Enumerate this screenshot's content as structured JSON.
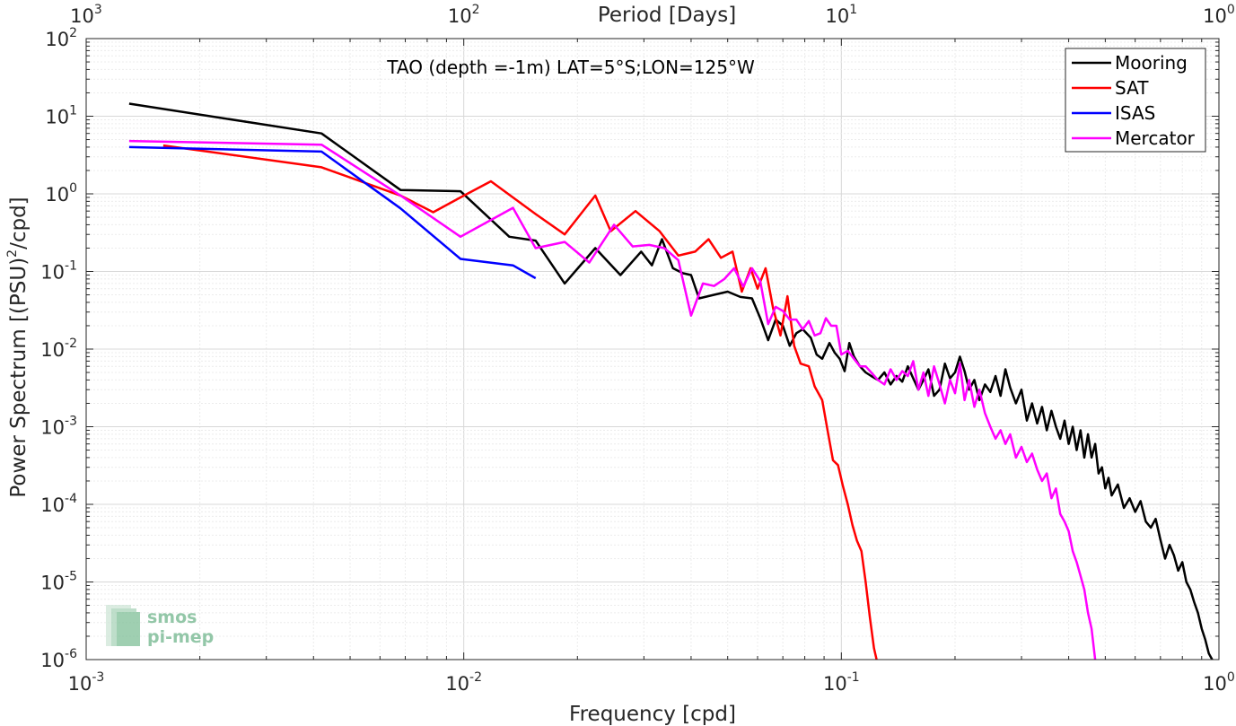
{
  "chart_data": {
    "type": "line",
    "title": "TAO (depth =-1m) LAT=5°S;LON=125°W",
    "xlabel": "Frequency [cpd]",
    "ylabel_main": "Power Spectrum [(PSU)",
    "ylabel_sup": "2",
    "ylabel_end": "/cpd]",
    "top_xlabel": "Period [Days]",
    "xscale": "log",
    "yscale": "log",
    "xlim": [
      0.001,
      1
    ],
    "ylim": [
      1e-06,
      100
    ],
    "grid": true,
    "legend_position": "top-right",
    "x_ticks": [
      {
        "base": "10",
        "exp": "-3",
        "value": 0.001
      },
      {
        "base": "10",
        "exp": "-2",
        "value": 0.01
      },
      {
        "base": "10",
        "exp": "-1",
        "value": 0.1
      },
      {
        "base": "10",
        "exp": "0",
        "value": 1
      }
    ],
    "y_ticks": [
      {
        "base": "10",
        "exp": "-6",
        "value": 1e-06
      },
      {
        "base": "10",
        "exp": "-5",
        "value": 1e-05
      },
      {
        "base": "10",
        "exp": "-4",
        "value": 0.0001
      },
      {
        "base": "10",
        "exp": "-3",
        "value": 0.001
      },
      {
        "base": "10",
        "exp": "-2",
        "value": 0.01
      },
      {
        "base": "10",
        "exp": "-1",
        "value": 0.1
      },
      {
        "base": "10",
        "exp": "0",
        "value": 1
      },
      {
        "base": "10",
        "exp": "1",
        "value": 10
      },
      {
        "base": "10",
        "exp": "2",
        "value": 100
      }
    ],
    "top_ticks": [
      {
        "base": "10",
        "exp": "3",
        "value": 1000
      },
      {
        "base": "10",
        "exp": "2",
        "value": 100
      },
      {
        "base": "10",
        "exp": "1",
        "value": 10
      },
      {
        "base": "10",
        "exp": "0",
        "value": 1
      }
    ],
    "series": [
      {
        "name": "Mooring",
        "color": "#000000",
        "points": [
          [
            0.0013,
            14.5
          ],
          [
            0.0042,
            6.0
          ],
          [
            0.0068,
            1.12
          ],
          [
            0.0098,
            1.08
          ],
          [
            0.0132,
            0.28
          ],
          [
            0.0155,
            0.25
          ],
          [
            0.0185,
            0.07
          ],
          [
            0.0223,
            0.2
          ],
          [
            0.026,
            0.09
          ],
          [
            0.0295,
            0.18
          ],
          [
            0.0315,
            0.12
          ],
          [
            0.0335,
            0.26
          ],
          [
            0.0358,
            0.11
          ],
          [
            0.038,
            0.095
          ],
          [
            0.04,
            0.09
          ],
          [
            0.042,
            0.045
          ],
          [
            0.046,
            0.05
          ],
          [
            0.05,
            0.055
          ],
          [
            0.054,
            0.047
          ],
          [
            0.058,
            0.045
          ],
          [
            0.061,
            0.025
          ],
          [
            0.064,
            0.013
          ],
          [
            0.067,
            0.024
          ],
          [
            0.07,
            0.02
          ],
          [
            0.073,
            0.011
          ],
          [
            0.076,
            0.016
          ],
          [
            0.079,
            0.018
          ],
          [
            0.083,
            0.014
          ],
          [
            0.086,
            0.0085
          ],
          [
            0.089,
            0.0075
          ],
          [
            0.093,
            0.012
          ],
          [
            0.096,
            0.009
          ],
          [
            0.099,
            0.0075
          ],
          [
            0.102,
            0.0052
          ],
          [
            0.105,
            0.012
          ],
          [
            0.108,
            0.008
          ],
          [
            0.112,
            0.006
          ],
          [
            0.116,
            0.005
          ],
          [
            0.12,
            0.0045
          ],
          [
            0.125,
            0.004
          ],
          [
            0.13,
            0.005
          ],
          [
            0.135,
            0.0035
          ],
          [
            0.14,
            0.0045
          ],
          [
            0.145,
            0.0038
          ],
          [
            0.15,
            0.006
          ],
          [
            0.155,
            0.0042
          ],
          [
            0.16,
            0.003
          ],
          [
            0.165,
            0.004
          ],
          [
            0.17,
            0.0055
          ],
          [
            0.176,
            0.0025
          ],
          [
            0.182,
            0.003
          ],
          [
            0.188,
            0.0065
          ],
          [
            0.194,
            0.0042
          ],
          [
            0.2,
            0.005
          ],
          [
            0.206,
            0.008
          ],
          [
            0.212,
            0.0052
          ],
          [
            0.218,
            0.003
          ],
          [
            0.225,
            0.004
          ],
          [
            0.232,
            0.0022
          ],
          [
            0.24,
            0.0035
          ],
          [
            0.248,
            0.0028
          ],
          [
            0.256,
            0.0045
          ],
          [
            0.264,
            0.0025
          ],
          [
            0.272,
            0.0055
          ],
          [
            0.28,
            0.0032
          ],
          [
            0.29,
            0.002
          ],
          [
            0.3,
            0.003
          ],
          [
            0.31,
            0.0012
          ],
          [
            0.32,
            0.002
          ],
          [
            0.33,
            0.0011
          ],
          [
            0.34,
            0.0018
          ],
          [
            0.35,
            0.0009
          ],
          [
            0.36,
            0.0016
          ],
          [
            0.37,
            0.001
          ],
          [
            0.38,
            0.0007
          ],
          [
            0.39,
            0.0012
          ],
          [
            0.4,
            0.0006
          ],
          [
            0.41,
            0.001
          ],
          [
            0.42,
            0.0005
          ],
          [
            0.43,
            0.0009
          ],
          [
            0.44,
            0.0004
          ],
          [
            0.45,
            0.0008
          ],
          [
            0.46,
            0.0004
          ],
          [
            0.47,
            0.0006
          ],
          [
            0.48,
            0.00025
          ],
          [
            0.49,
            0.0003
          ],
          [
            0.5,
            0.00016
          ],
          [
            0.51,
            0.00022
          ],
          [
            0.52,
            0.00013
          ],
          [
            0.54,
            0.00018
          ],
          [
            0.56,
            9e-05
          ],
          [
            0.58,
            0.00012
          ],
          [
            0.6,
            8e-05
          ],
          [
            0.62,
            0.00011
          ],
          [
            0.64,
            6e-05
          ],
          [
            0.66,
            5e-05
          ],
          [
            0.68,
            6.5e-05
          ],
          [
            0.7,
            3.5e-05
          ],
          [
            0.72,
            2e-05
          ],
          [
            0.74,
            3e-05
          ],
          [
            0.76,
            2.2e-05
          ],
          [
            0.78,
            1.4e-05
          ],
          [
            0.8,
            1.8e-05
          ],
          [
            0.82,
            1e-05
          ],
          [
            0.84,
            8e-06
          ],
          [
            0.86,
            5.5e-06
          ],
          [
            0.88,
            4e-06
          ],
          [
            0.9,
            2.5e-06
          ],
          [
            0.92,
            1.8e-06
          ],
          [
            0.94,
            1.2e-06
          ],
          [
            0.96,
            1e-06
          ]
        ]
      },
      {
        "name": "SAT",
        "color": "#ff0000",
        "points": [
          [
            0.0016,
            4.2
          ],
          [
            0.0042,
            2.2
          ],
          [
            0.0068,
            0.95
          ],
          [
            0.0083,
            0.58
          ],
          [
            0.0098,
            0.9
          ],
          [
            0.0118,
            1.45
          ],
          [
            0.0155,
            0.55
          ],
          [
            0.0185,
            0.3
          ],
          [
            0.0223,
            0.95
          ],
          [
            0.0245,
            0.33
          ],
          [
            0.0285,
            0.6
          ],
          [
            0.033,
            0.33
          ],
          [
            0.037,
            0.16
          ],
          [
            0.041,
            0.18
          ],
          [
            0.0445,
            0.26
          ],
          [
            0.048,
            0.15
          ],
          [
            0.0515,
            0.18
          ],
          [
            0.0545,
            0.055
          ],
          [
            0.0575,
            0.11
          ],
          [
            0.06,
            0.06
          ],
          [
            0.063,
            0.11
          ],
          [
            0.066,
            0.033
          ],
          [
            0.069,
            0.015
          ],
          [
            0.072,
            0.048
          ],
          [
            0.075,
            0.011
          ],
          [
            0.078,
            0.0065
          ],
          [
            0.082,
            0.006
          ],
          [
            0.085,
            0.0033
          ],
          [
            0.089,
            0.0022
          ],
          [
            0.092,
            0.00088
          ],
          [
            0.095,
            0.00037
          ],
          [
            0.098,
            0.00032
          ],
          [
            0.101,
            0.00017
          ],
          [
            0.104,
            0.0001
          ],
          [
            0.107,
            5.4e-05
          ],
          [
            0.11,
            3.4e-05
          ],
          [
            0.113,
            2.5e-05
          ],
          [
            0.116,
            1e-05
          ],
          [
            0.119,
            3.5e-06
          ],
          [
            0.122,
            1.4e-06
          ],
          [
            0.124,
            1e-06
          ]
        ]
      },
      {
        "name": "ISAS",
        "color": "#0000ff",
        "points": [
          [
            0.0013,
            4.0
          ],
          [
            0.0042,
            3.5
          ],
          [
            0.0068,
            0.65
          ],
          [
            0.0098,
            0.145
          ],
          [
            0.0135,
            0.12
          ],
          [
            0.0155,
            0.082
          ]
        ]
      },
      {
        "name": "Mercator",
        "color": "#ff00ff",
        "points": [
          [
            0.0013,
            4.8
          ],
          [
            0.0042,
            4.3
          ],
          [
            0.0068,
            0.95
          ],
          [
            0.0098,
            0.28
          ],
          [
            0.0135,
            0.66
          ],
          [
            0.0155,
            0.2
          ],
          [
            0.0185,
            0.24
          ],
          [
            0.0215,
            0.13
          ],
          [
            0.025,
            0.4
          ],
          [
            0.028,
            0.21
          ],
          [
            0.031,
            0.22
          ],
          [
            0.034,
            0.2
          ],
          [
            0.037,
            0.14
          ],
          [
            0.04,
            0.027
          ],
          [
            0.043,
            0.07
          ],
          [
            0.046,
            0.065
          ],
          [
            0.049,
            0.08
          ],
          [
            0.052,
            0.11
          ],
          [
            0.055,
            0.064
          ],
          [
            0.058,
            0.11
          ],
          [
            0.061,
            0.075
          ],
          [
            0.064,
            0.021
          ],
          [
            0.067,
            0.035
          ],
          [
            0.07,
            0.031
          ],
          [
            0.073,
            0.024
          ],
          [
            0.076,
            0.024
          ],
          [
            0.079,
            0.018
          ],
          [
            0.082,
            0.023
          ],
          [
            0.085,
            0.015
          ],
          [
            0.088,
            0.016
          ],
          [
            0.091,
            0.025
          ],
          [
            0.094,
            0.02
          ],
          [
            0.097,
            0.02
          ],
          [
            0.1,
            0.0085
          ],
          [
            0.104,
            0.0095
          ],
          [
            0.108,
            0.0075
          ],
          [
            0.112,
            0.006
          ],
          [
            0.116,
            0.006
          ],
          [
            0.12,
            0.005
          ],
          [
            0.125,
            0.004
          ],
          [
            0.13,
            0.0035
          ],
          [
            0.135,
            0.0055
          ],
          [
            0.14,
            0.004
          ],
          [
            0.145,
            0.0052
          ],
          [
            0.15,
            0.0045
          ],
          [
            0.155,
            0.007
          ],
          [
            0.16,
            0.003
          ],
          [
            0.165,
            0.005
          ],
          [
            0.17,
            0.0025
          ],
          [
            0.176,
            0.006
          ],
          [
            0.182,
            0.0035
          ],
          [
            0.188,
            0.002
          ],
          [
            0.194,
            0.004
          ],
          [
            0.2,
            0.0027
          ],
          [
            0.206,
            0.0065
          ],
          [
            0.212,
            0.0022
          ],
          [
            0.218,
            0.004
          ],
          [
            0.225,
            0.0018
          ],
          [
            0.232,
            0.003
          ],
          [
            0.24,
            0.0015
          ],
          [
            0.248,
            0.001
          ],
          [
            0.256,
            0.0007
          ],
          [
            0.264,
            0.0009
          ],
          [
            0.272,
            0.0006
          ],
          [
            0.28,
            0.0008
          ],
          [
            0.29,
            0.0004
          ],
          [
            0.3,
            0.00055
          ],
          [
            0.31,
            0.00035
          ],
          [
            0.32,
            0.00045
          ],
          [
            0.33,
            0.00028
          ],
          [
            0.34,
            0.0002
          ],
          [
            0.35,
            0.00025
          ],
          [
            0.36,
            0.00012
          ],
          [
            0.37,
            0.00016
          ],
          [
            0.38,
            7.5e-05
          ],
          [
            0.39,
            6e-05
          ],
          [
            0.4,
            4.5e-05
          ],
          [
            0.41,
            2.5e-05
          ],
          [
            0.42,
            1.8e-05
          ],
          [
            0.43,
            1.2e-05
          ],
          [
            0.44,
            8e-06
          ],
          [
            0.45,
            4e-06
          ],
          [
            0.46,
            2.5e-06
          ],
          [
            0.47,
            1e-06
          ]
        ]
      }
    ]
  },
  "watermark": {
    "line1": "smos",
    "line2": "pi-mep"
  }
}
